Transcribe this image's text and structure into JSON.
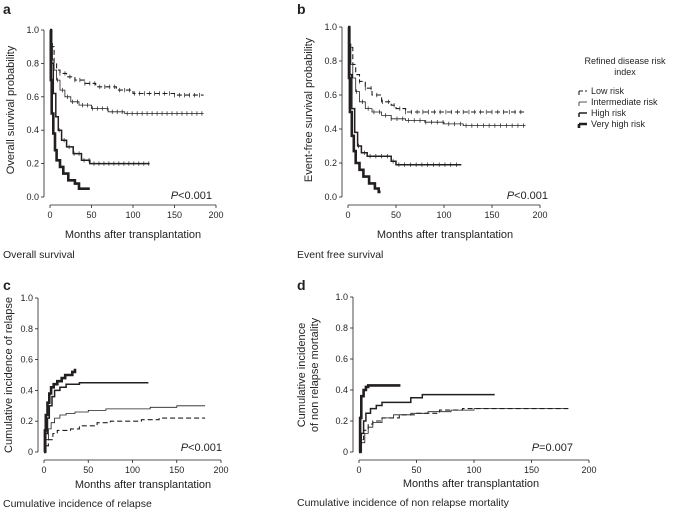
{
  "legend": {
    "title_line1": "Refined disease risk",
    "title_line2": "index",
    "entries": [
      {
        "key": "low",
        "label": "Low risk",
        "stroke_width": 1.1,
        "dash": "5,3",
        "color": "#231f20"
      },
      {
        "key": "intermediate",
        "label": "Intermediate risk",
        "stroke_width": 0.8,
        "dash": "",
        "color": "#231f20"
      },
      {
        "key": "high",
        "label": "High risk",
        "stroke_width": 1.5,
        "dash": "",
        "color": "#231f20"
      },
      {
        "key": "very_high",
        "label": "Very high risk",
        "stroke_width": 2.6,
        "dash": "",
        "color": "#231f20"
      }
    ]
  },
  "chart_data": [
    {
      "id": "a",
      "panel_label": "a",
      "type": "line",
      "ylabel": "Overall survival probability",
      "xlabel": "Months after transplantation",
      "caption": "Overall survival",
      "p_prefix": "P",
      "p_value": "<0.001",
      "xlim": [
        0,
        200
      ],
      "ylim": [
        0,
        1.0
      ],
      "xticks": [
        "0",
        "50",
        "100",
        "150",
        "200"
      ],
      "yticks": [
        "0.0",
        "0.2",
        "0.4",
        "0.6",
        "0.8",
        "1.0"
      ],
      "series": [
        {
          "key": "low",
          "censored": true,
          "points": [
            [
              0,
              1.0
            ],
            [
              2,
              0.9
            ],
            [
              5,
              0.8
            ],
            [
              8,
              0.76
            ],
            [
              12,
              0.74
            ],
            [
              20,
              0.72
            ],
            [
              30,
              0.7
            ],
            [
              42,
              0.68
            ],
            [
              55,
              0.66
            ],
            [
              75,
              0.66
            ],
            [
              80,
              0.64
            ],
            [
              100,
              0.62
            ],
            [
              120,
              0.62
            ],
            [
              150,
              0.61
            ],
            [
              185,
              0.61
            ]
          ]
        },
        {
          "key": "intermediate",
          "censored": true,
          "points": [
            [
              0,
              1.0
            ],
            [
              1,
              0.92
            ],
            [
              3,
              0.82
            ],
            [
              5,
              0.76
            ],
            [
              8,
              0.7
            ],
            [
              12,
              0.64
            ],
            [
              18,
              0.6
            ],
            [
              25,
              0.57
            ],
            [
              35,
              0.55
            ],
            [
              50,
              0.53
            ],
            [
              70,
              0.51
            ],
            [
              90,
              0.5
            ],
            [
              120,
              0.5
            ],
            [
              150,
              0.5
            ],
            [
              185,
              0.5
            ]
          ]
        },
        {
          "key": "high",
          "censored": true,
          "points": [
            [
              0,
              1.0
            ],
            [
              2,
              0.8
            ],
            [
              4,
              0.62
            ],
            [
              7,
              0.48
            ],
            [
              10,
              0.4
            ],
            [
              14,
              0.34
            ],
            [
              20,
              0.3
            ],
            [
              28,
              0.26
            ],
            [
              38,
              0.22
            ],
            [
              48,
              0.2
            ],
            [
              80,
              0.2
            ],
            [
              120,
              0.2
            ]
          ]
        },
        {
          "key": "very_high",
          "censored": false,
          "points": [
            [
              0,
              1.0
            ],
            [
              1,
              0.7
            ],
            [
              2,
              0.5
            ],
            [
              4,
              0.38
            ],
            [
              6,
              0.28
            ],
            [
              8,
              0.22
            ],
            [
              12,
              0.18
            ],
            [
              16,
              0.14
            ],
            [
              22,
              0.1
            ],
            [
              30,
              0.08
            ],
            [
              35,
              0.05
            ],
            [
              48,
              0.05
            ]
          ]
        }
      ]
    },
    {
      "id": "b",
      "panel_label": "b",
      "type": "line",
      "ylabel": "Event-free survival probability",
      "xlabel": "Months after transplantation",
      "caption": "Event free survival",
      "p_prefix": "P",
      "p_value": "<0.001",
      "xlim": [
        0,
        200
      ],
      "ylim": [
        0,
        1.0
      ],
      "xticks": [
        "0",
        "50",
        "100",
        "150",
        "200"
      ],
      "yticks": [
        "0.0",
        "0.2",
        "0.4",
        "0.6",
        "0.8",
        "1.0"
      ],
      "series": [
        {
          "key": "low",
          "censored": true,
          "points": [
            [
              0,
              1.0
            ],
            [
              2,
              0.88
            ],
            [
              5,
              0.78
            ],
            [
              8,
              0.72
            ],
            [
              12,
              0.68
            ],
            [
              18,
              0.64
            ],
            [
              25,
              0.6
            ],
            [
              35,
              0.56
            ],
            [
              45,
              0.54
            ],
            [
              50,
              0.52
            ],
            [
              60,
              0.5
            ],
            [
              100,
              0.5
            ],
            [
              140,
              0.5
            ],
            [
              185,
              0.5
            ]
          ]
        },
        {
          "key": "intermediate",
          "censored": true,
          "points": [
            [
              0,
              1.0
            ],
            [
              1,
              0.9
            ],
            [
              3,
              0.78
            ],
            [
              5,
              0.7
            ],
            [
              8,
              0.62
            ],
            [
              12,
              0.56
            ],
            [
              18,
              0.52
            ],
            [
              25,
              0.5
            ],
            [
              35,
              0.48
            ],
            [
              45,
              0.46
            ],
            [
              60,
              0.45
            ],
            [
              80,
              0.44
            ],
            [
              100,
              0.43
            ],
            [
              120,
              0.42
            ],
            [
              160,
              0.42
            ],
            [
              185,
              0.42
            ]
          ]
        },
        {
          "key": "high",
          "censored": true,
          "points": [
            [
              0,
              1.0
            ],
            [
              2,
              0.72
            ],
            [
              4,
              0.52
            ],
            [
              7,
              0.38
            ],
            [
              10,
              0.3
            ],
            [
              14,
              0.26
            ],
            [
              20,
              0.24
            ],
            [
              40,
              0.24
            ],
            [
              45,
              0.21
            ],
            [
              50,
              0.19
            ],
            [
              80,
              0.19
            ],
            [
              118,
              0.19
            ]
          ]
        },
        {
          "key": "very_high",
          "censored": false,
          "points": [
            [
              0,
              1.0
            ],
            [
              1,
              0.7
            ],
            [
              2,
              0.5
            ],
            [
              4,
              0.36
            ],
            [
              6,
              0.27
            ],
            [
              8,
              0.2
            ],
            [
              12,
              0.16
            ],
            [
              16,
              0.12
            ],
            [
              22,
              0.08
            ],
            [
              28,
              0.05
            ],
            [
              32,
              0.03
            ],
            [
              34,
              0.03
            ]
          ]
        }
      ]
    },
    {
      "id": "c",
      "panel_label": "c",
      "type": "line",
      "ylabel": "Cumulative incidence of relapse",
      "xlabel": "Months after transplantation",
      "caption": "Cumulative incidence of relapse",
      "p_prefix": "P",
      "p_value": "<0.001",
      "xlim": [
        0,
        200
      ],
      "ylim": [
        0,
        1.0
      ],
      "xticks": [
        "0",
        "50",
        "100",
        "150",
        "200"
      ],
      "yticks": [
        "0",
        "0.2",
        "0.4",
        "0.6",
        "0.8",
        "1.0"
      ],
      "series": [
        {
          "key": "low",
          "censored": false,
          "points": [
            [
              0,
              0
            ],
            [
              2,
              0.04
            ],
            [
              5,
              0.08
            ],
            [
              10,
              0.12
            ],
            [
              15,
              0.14
            ],
            [
              30,
              0.15
            ],
            [
              40,
              0.17
            ],
            [
              60,
              0.19
            ],
            [
              75,
              0.2
            ],
            [
              110,
              0.21
            ],
            [
              130,
              0.22
            ],
            [
              182,
              0.22
            ]
          ]
        },
        {
          "key": "intermediate",
          "censored": false,
          "points": [
            [
              0,
              0
            ],
            [
              2,
              0.08
            ],
            [
              5,
              0.15
            ],
            [
              8,
              0.19
            ],
            [
              12,
              0.22
            ],
            [
              18,
              0.24
            ],
            [
              25,
              0.25
            ],
            [
              35,
              0.26
            ],
            [
              50,
              0.27
            ],
            [
              70,
              0.28
            ],
            [
              100,
              0.28
            ],
            [
              120,
              0.29
            ],
            [
              150,
              0.3
            ],
            [
              182,
              0.3
            ]
          ]
        },
        {
          "key": "high",
          "censored": false,
          "points": [
            [
              0,
              0
            ],
            [
              2,
              0.12
            ],
            [
              4,
              0.22
            ],
            [
              6,
              0.3
            ],
            [
              9,
              0.36
            ],
            [
              12,
              0.4
            ],
            [
              18,
              0.42
            ],
            [
              25,
              0.44
            ],
            [
              40,
              0.45
            ],
            [
              90,
              0.45
            ],
            [
              118,
              0.45
            ]
          ]
        },
        {
          "key": "very_high",
          "censored": false,
          "points": [
            [
              0,
              0
            ],
            [
              1,
              0.14
            ],
            [
              2,
              0.24
            ],
            [
              4,
              0.32
            ],
            [
              6,
              0.38
            ],
            [
              8,
              0.42
            ],
            [
              11,
              0.44
            ],
            [
              15,
              0.46
            ],
            [
              20,
              0.48
            ],
            [
              24,
              0.5
            ],
            [
              32,
              0.52
            ],
            [
              35,
              0.54
            ]
          ]
        }
      ]
    },
    {
      "id": "d",
      "panel_label": "d",
      "type": "line",
      "ylabel_line1": "Cumulative incidence",
      "ylabel_line2": "of non relapse mortality",
      "xlabel": "Months after transplantation",
      "caption": "Cumulative incidence of non relapse mortality",
      "p_prefix": "P",
      "p_value": "=0.007",
      "xlim": [
        0,
        200
      ],
      "ylim": [
        0,
        1.0
      ],
      "xticks": [
        "0",
        "50",
        "100",
        "150",
        "200"
      ],
      "yticks": [
        "0",
        "0.2",
        "0.4",
        "0.6",
        "0.8",
        "1.0"
      ],
      "series": [
        {
          "key": "low",
          "censored": false,
          "points": [
            [
              0,
              0
            ],
            [
              2,
              0.08
            ],
            [
              4,
              0.14
            ],
            [
              8,
              0.18
            ],
            [
              12,
              0.2
            ],
            [
              20,
              0.22
            ],
            [
              35,
              0.24
            ],
            [
              50,
              0.25
            ],
            [
              70,
              0.27
            ],
            [
              90,
              0.28
            ],
            [
              120,
              0.28
            ],
            [
              182,
              0.28
            ]
          ]
        },
        {
          "key": "intermediate",
          "censored": false,
          "points": [
            [
              0,
              0
            ],
            [
              2,
              0.06
            ],
            [
              5,
              0.12
            ],
            [
              8,
              0.16
            ],
            [
              12,
              0.19
            ],
            [
              20,
              0.22
            ],
            [
              30,
              0.24
            ],
            [
              45,
              0.25
            ],
            [
              60,
              0.26
            ],
            [
              80,
              0.27
            ],
            [
              100,
              0.28
            ],
            [
              150,
              0.28
            ],
            [
              182,
              0.28
            ]
          ]
        },
        {
          "key": "high",
          "censored": false,
          "points": [
            [
              0,
              0
            ],
            [
              2,
              0.12
            ],
            [
              4,
              0.2
            ],
            [
              6,
              0.25
            ],
            [
              10,
              0.28
            ],
            [
              15,
              0.3
            ],
            [
              20,
              0.32
            ],
            [
              40,
              0.32
            ],
            [
              45,
              0.35
            ],
            [
              55,
              0.37
            ],
            [
              118,
              0.37
            ]
          ]
        },
        {
          "key": "very_high",
          "censored": false,
          "points": [
            [
              0,
              0
            ],
            [
              1,
              0.22
            ],
            [
              2,
              0.36
            ],
            [
              4,
              0.4
            ],
            [
              6,
              0.42
            ],
            [
              8,
              0.43
            ],
            [
              20,
              0.43
            ],
            [
              36,
              0.43
            ]
          ]
        }
      ]
    }
  ]
}
